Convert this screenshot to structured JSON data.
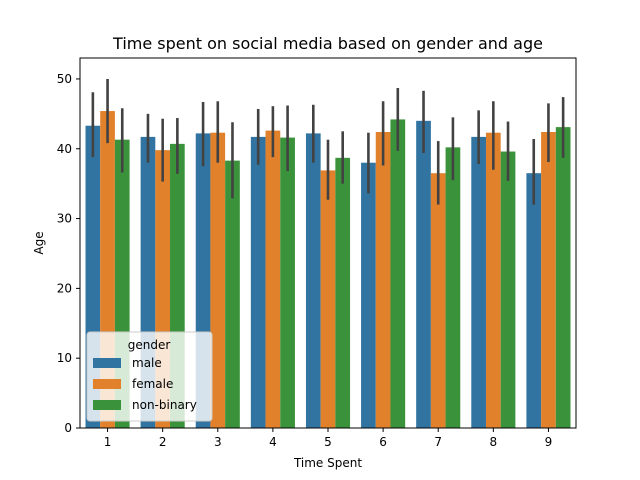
{
  "chart_data": {
    "type": "bar",
    "title": "Time spent on social media based on gender and age",
    "xlabel": "Time Spent",
    "ylabel": "Age",
    "ylim": [
      0,
      53
    ],
    "yticks": [
      0,
      10,
      20,
      30,
      40,
      50
    ],
    "categories": [
      "1",
      "2",
      "3",
      "4",
      "5",
      "6",
      "7",
      "8",
      "9"
    ],
    "series": [
      {
        "name": "male",
        "color": "#3274a1",
        "values": [
          43.3,
          41.7,
          42.2,
          41.7,
          42.2,
          38.0,
          44.0,
          41.7,
          36.5
        ],
        "ci_low": [
          38.8,
          38.0,
          37.5,
          37.7,
          38.0,
          33.6,
          39.4,
          37.8,
          32.0
        ],
        "ci_high": [
          48.1,
          45.0,
          46.7,
          45.7,
          46.3,
          42.3,
          48.3,
          45.5,
          41.4
        ]
      },
      {
        "name": "female",
        "color": "#e1812c",
        "values": [
          45.4,
          39.8,
          42.3,
          42.6,
          36.9,
          42.4,
          36.5,
          42.3,
          42.4
        ],
        "ci_low": [
          40.8,
          35.3,
          38.0,
          38.8,
          32.7,
          37.6,
          32.0,
          37.0,
          38.1
        ],
        "ci_high": [
          50.0,
          44.3,
          46.8,
          46.1,
          41.3,
          46.8,
          41.1,
          46.8,
          46.5
        ]
      },
      {
        "name": "non-binary",
        "color": "#3a923a",
        "values": [
          41.3,
          40.7,
          38.3,
          41.6,
          38.7,
          44.2,
          40.2,
          39.6,
          43.1
        ],
        "ci_low": [
          36.6,
          36.4,
          32.9,
          36.8,
          35.0,
          39.7,
          35.5,
          35.4,
          38.7
        ],
        "ci_high": [
          45.8,
          44.4,
          43.8,
          46.2,
          42.5,
          48.7,
          44.5,
          43.9,
          47.4
        ]
      }
    ],
    "legend": {
      "title": "gender",
      "placement": "lower-left"
    },
    "grid": false
  }
}
